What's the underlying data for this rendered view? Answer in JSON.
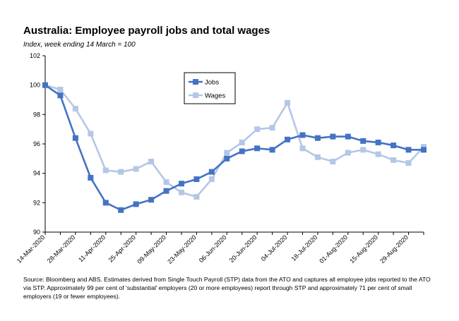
{
  "chart_data": {
    "type": "line",
    "title": "Australia:  Employee payroll jobs and total wages",
    "subtitle": "Index, week ending 14 March = 100",
    "source": "Source: Bloomberg and ABS.  Estimates derived from Single Touch Payroll (STP) data from the ATO and captures all employee jobs reported to the ATO via STP.  Approximately 99 per cent of 'substantial' employers (20 or more employees) report through STP and approximately 71 per cent of small employers (19 or fewer employees).",
    "x": [
      "14-Mar-2020",
      "21-Mar-2020",
      "28-Mar-2020",
      "04-Apr-2020",
      "11-Apr-2020",
      "18-Apr-2020",
      "25-Apr-2020",
      "02-May-2020",
      "09-May-2020",
      "16-May-2020",
      "23-May-2020",
      "30-May-2020",
      "06-Jun-2020",
      "13-Jun-2020",
      "20-Jun-2020",
      "27-Jun-2020",
      "04-Jul-2020",
      "11-Jul-2020",
      "18-Jul-2020",
      "25-Jul-2020",
      "01-Aug-2020",
      "08-Aug-2020",
      "15-Aug-2020",
      "22-Aug-2020",
      "29-Aug-2020",
      "05-Sep-2020"
    ],
    "x_tick_labels": [
      "14-Mar-2020",
      "28-Mar-2020",
      "11-Apr-2020",
      "25-Apr-2020",
      "09-May-2020",
      "23-May-2020",
      "06-Jun-2020",
      "20-Jun-2020",
      "04-Jul-2020",
      "18-Jul-2020",
      "01-Aug-2020",
      "15-Aug-2020",
      "29-Aug-2020"
    ],
    "ylim": [
      90,
      102
    ],
    "yticks": [
      90,
      92,
      94,
      96,
      98,
      100,
      102
    ],
    "legend_position": "top-center",
    "series": [
      {
        "name": "Jobs",
        "color": "#4472C4",
        "values": [
          100.0,
          99.3,
          96.4,
          93.7,
          92.0,
          91.5,
          91.9,
          92.2,
          92.8,
          93.3,
          93.6,
          94.1,
          95.0,
          95.5,
          95.7,
          95.6,
          96.3,
          96.6,
          96.4,
          96.5,
          96.5,
          96.2,
          96.1,
          95.9,
          95.6,
          95.6
        ]
      },
      {
        "name": "Wages",
        "color": "#B4C7E7",
        "values": [
          100.0,
          99.7,
          98.4,
          96.7,
          94.2,
          94.1,
          94.3,
          94.8,
          93.4,
          92.7,
          92.4,
          93.6,
          95.4,
          96.1,
          97.0,
          97.1,
          98.8,
          95.7,
          95.1,
          94.8,
          95.4,
          95.6,
          95.3,
          94.9,
          94.7,
          95.8
        ]
      }
    ]
  }
}
